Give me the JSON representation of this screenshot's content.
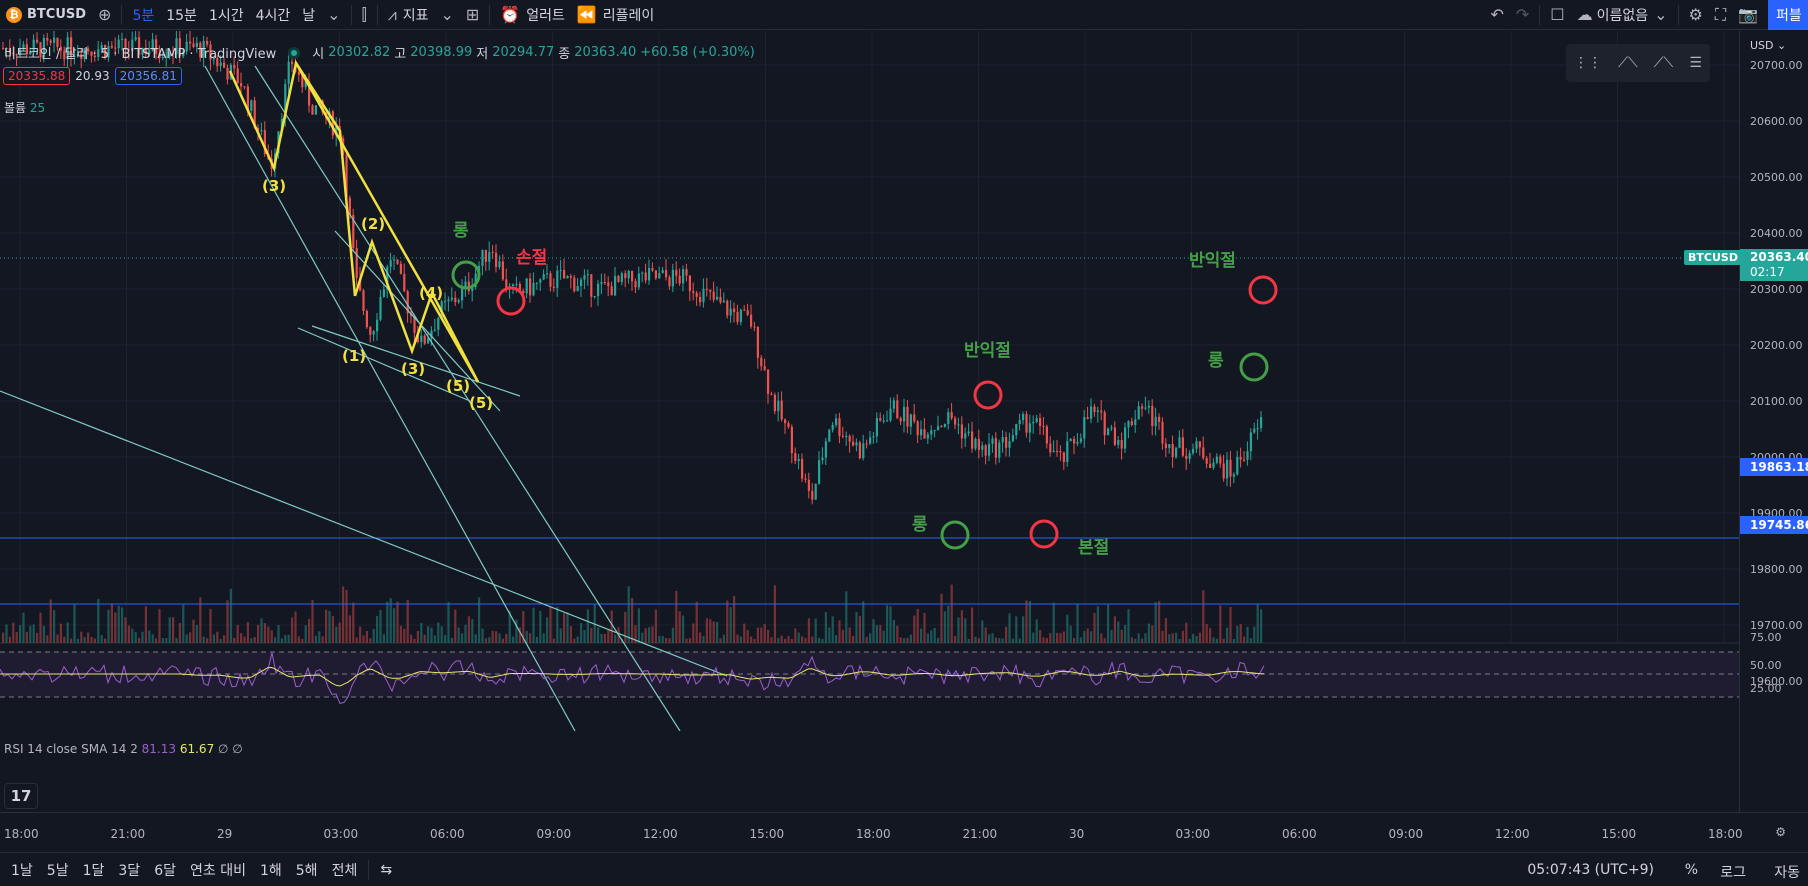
{
  "topbar": {
    "symbol": "BTCUSD",
    "intervals": [
      "5분",
      "15분",
      "1시간",
      "4시간",
      "날"
    ],
    "active_interval": "5분",
    "indicators_label": "지표",
    "alert_label": "얼러트",
    "replay_label": "리플레이",
    "layout_name": "이름없음",
    "publish_label": "퍼블"
  },
  "legend": {
    "title": "비트코인 / 달러 · 5 · BITSTAMP · TradingView",
    "open_k": "시",
    "open_v": "20302.82",
    "high_k": "고",
    "high_v": "20398.99",
    "low_k": "저",
    "low_v": "20294.77",
    "close_k": "종",
    "close_v": "20363.40",
    "change": "+60.58 (+0.30%)",
    "sell_price": "20335.88",
    "spread": "20.93",
    "buy_price": "20356.81",
    "volume_label": "볼륨",
    "volume_value": "25"
  },
  "price_axis": {
    "currency": "USD",
    "labels": [
      "20700.00",
      "20600.00",
      "20500.00",
      "20400.00",
      "20300.00",
      "20200.00",
      "20100.00",
      "20000.00",
      "19900.00",
      "19800.00",
      "19700.00",
      "19600.00"
    ],
    "last_symbol": "BTCUSD",
    "last_price": "20363.40",
    "countdown": "02:17",
    "hline1": "19863.18",
    "hline2": "19745.86",
    "rsi_labels": [
      "75.00",
      "50.00",
      "25.00"
    ]
  },
  "rsi": {
    "name": "RSI 14 close SMA 14 2",
    "rsi_value": "81.13",
    "sma_value": "61.67",
    "extra": "∅ ∅"
  },
  "time_axis": [
    "18:00",
    "21:00",
    "29",
    "03:00",
    "06:00",
    "09:00",
    "12:00",
    "15:00",
    "18:00",
    "21:00",
    "30",
    "03:00",
    "06:00",
    "09:00",
    "12:00",
    "15:00",
    "18:00"
  ],
  "annotations": {
    "long": "롱",
    "stop": "손절",
    "half_take": "반익절",
    "breakeven": "본절"
  },
  "waves": [
    "(1)",
    "(2)",
    "(3)",
    "(4)",
    "(5)"
  ],
  "bottombar": {
    "ranges": [
      "1날",
      "5날",
      "1달",
      "3달",
      "6달",
      "연초 대비",
      "1해",
      "5해",
      "전체"
    ],
    "clock": "05:07:43 (UTC+9)",
    "percent": "%",
    "log": "로그",
    "auto": "자동"
  },
  "colors": {
    "up": "#26a69a",
    "down": "#ef5350",
    "accent": "#2962ff",
    "wave": "#f0e040"
  }
}
